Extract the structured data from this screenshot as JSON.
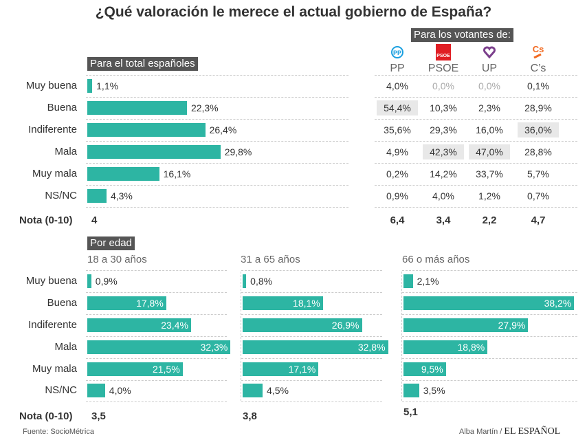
{
  "title": "¿Qué valoración le merece el actual gobierno de España?",
  "source_label": "Fuente:",
  "source": "SocioMétrica",
  "credit": "Alba Martín /",
  "brand": "EL ESPAÑOL",
  "nota_label": "Nota (0-10)",
  "colors": {
    "bar": "#2db5a3",
    "highlight": "#e8e8e8",
    "tag": "#555555"
  },
  "chart_data": [
    {
      "type": "bar",
      "orientation": "horizontal",
      "title": "Para el total españoles",
      "categories": [
        "Muy buena",
        "Buena",
        "Indiferente",
        "Mala",
        "Muy mala",
        "NS/NC"
      ],
      "values": [
        1.1,
        22.3,
        26.4,
        29.8,
        16.1,
        4.3
      ],
      "labels": [
        "1,1%",
        "22,3%",
        "26,4%",
        "29,8%",
        "16,1%",
        "4,3%"
      ],
      "nota": "4"
    },
    {
      "type": "table",
      "title": "Para los votantes de:",
      "columns": [
        {
          "name": "PP",
          "icon": "pp-logo",
          "nota": "6,4"
        },
        {
          "name": "PSOE",
          "icon": "psoe-logo",
          "nota": "3,4"
        },
        {
          "name": "UP",
          "icon": "up-heart-logo",
          "nota": "2,2"
        },
        {
          "name": "C’s",
          "icon": "cs-logo",
          "nota": "4,7"
        }
      ],
      "rows": [
        [
          "4,0%",
          "0,0%",
          "0,0%",
          "0,1%"
        ],
        [
          "54,4%",
          "10,3%",
          "2,3%",
          "28,9%"
        ],
        [
          "35,6%",
          "29,3%",
          "16,0%",
          "36,0%"
        ],
        [
          "4,9%",
          "42,3%",
          "47,0%",
          "28,8%"
        ],
        [
          "0,2%",
          "14,2%",
          "33,7%",
          "5,7%"
        ],
        [
          "0,9%",
          "4,0%",
          "1,2%",
          "0,7%"
        ]
      ],
      "highlighted": [
        [
          1,
          0
        ],
        [
          3,
          1
        ],
        [
          3,
          2
        ],
        [
          2,
          3
        ]
      ],
      "grayed": [
        [
          0,
          1
        ],
        [
          0,
          2
        ]
      ]
    },
    {
      "type": "bar",
      "orientation": "horizontal",
      "group_title": "Por edad",
      "title": "18 a 30 años",
      "categories": [
        "Muy buena",
        "Buena",
        "Indiferente",
        "Mala",
        "Muy mala",
        "NS/NC"
      ],
      "values": [
        0.9,
        17.8,
        23.4,
        32.3,
        21.5,
        4.0
      ],
      "labels": [
        "0,9%",
        "17,8%",
        "23,4%",
        "32,3%",
        "21,5%",
        "4,0%"
      ],
      "nota": "3,5"
    },
    {
      "type": "bar",
      "orientation": "horizontal",
      "title": "31 a 65 años",
      "values": [
        0.8,
        18.1,
        26.9,
        32.8,
        17.1,
        4.5
      ],
      "labels": [
        "0,8%",
        "18,1%",
        "26,9%",
        "32,8%",
        "17,1%",
        "4,5%"
      ],
      "nota": "3,8"
    },
    {
      "type": "bar",
      "orientation": "horizontal",
      "title": "66 o más años",
      "values": [
        2.1,
        38.2,
        27.9,
        18.8,
        9.5,
        3.5
      ],
      "labels": [
        "2,1%",
        "38,2%",
        "27,9%",
        "18,8%",
        "9,5%",
        "3,5%"
      ],
      "nota": "5,1"
    }
  ]
}
